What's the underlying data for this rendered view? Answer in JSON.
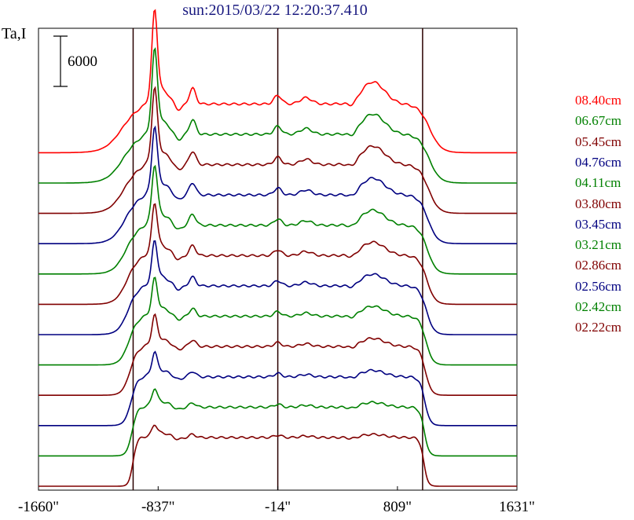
{
  "chart_data": {
    "type": "line",
    "title": "sun:2015/03/22 12:20:37.410",
    "ylabel": "Ta,I",
    "xlabel": "",
    "xlim": [
      -1660,
      1631
    ],
    "x_ticks": [
      {
        "value": -1660,
        "label": "-1660\""
      },
      {
        "value": -837,
        "label": "-837\""
      },
      {
        "value": -14,
        "label": "-14\""
      },
      {
        "value": 809,
        "label": "809\""
      },
      {
        "value": 1631,
        "label": "1631\""
      }
    ],
    "vertical_lines": [
      -1009,
      -14,
      982
    ],
    "scale_bar": {
      "label": "6000",
      "value": 6000
    },
    "grid": false,
    "legend_position": "right",
    "series": [
      {
        "name": "08.40cm",
        "color": "#ff0000"
      },
      {
        "name": "06.67cm",
        "color": "#008000"
      },
      {
        "name": "05.45cm",
        "color": "#800000"
      },
      {
        "name": "04.76cm",
        "color": "#000080"
      },
      {
        "name": "04.11cm",
        "color": "#008000"
      },
      {
        "name": "03.80cm",
        "color": "#800000"
      },
      {
        "name": "03.45cm",
        "color": "#000080"
      },
      {
        "name": "03.21cm",
        "color": "#008000"
      },
      {
        "name": "02.86cm",
        "color": "#800000"
      },
      {
        "name": "02.56cm",
        "color": "#000080"
      },
      {
        "name": "02.42cm",
        "color": "#008000"
      },
      {
        "name": "02.22cm",
        "color": "#800000"
      }
    ]
  }
}
